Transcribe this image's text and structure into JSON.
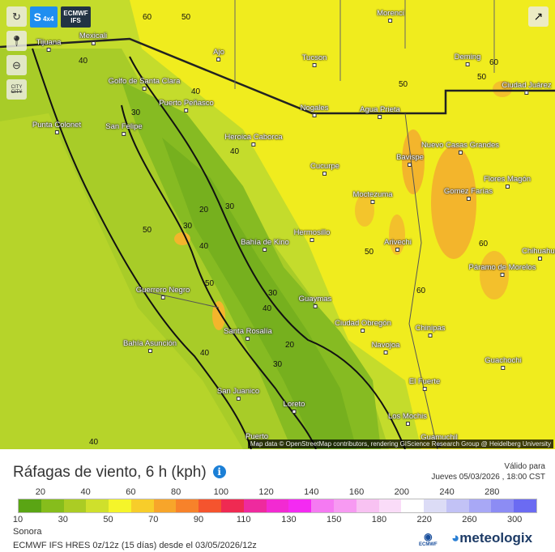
{
  "controls": {
    "refresh_icon": "refresh-icon",
    "model_s": "S",
    "model_s_sub": "4x4",
    "model_name_1": "ECMWF",
    "model_name_2": "IFS",
    "location_icon": "map-pin-icon",
    "zoom_out_icon": "zoom-out-icon",
    "city_toggle": "CITY",
    "share_icon": "share-icon"
  },
  "map": {
    "cities": [
      {
        "name": "Tijuana"
      },
      {
        "name": "Mexicali"
      },
      {
        "name": "Morenci"
      },
      {
        "name": "Ajo"
      },
      {
        "name": "Tucson"
      },
      {
        "name": "Deming"
      },
      {
        "name": "Ciudad Juárez"
      },
      {
        "name": "Golfo de Santa Clara"
      },
      {
        "name": "Puerto Peñasco"
      },
      {
        "name": "Nogales"
      },
      {
        "name": "Agua Prieta"
      },
      {
        "name": "Punta Colonet"
      },
      {
        "name": "San Felipe"
      },
      {
        "name": "Heroica Caborca"
      },
      {
        "name": "Bavispe"
      },
      {
        "name": "Nuevo Casas Grandes"
      },
      {
        "name": "Cucurpe"
      },
      {
        "name": "Flores Magón"
      },
      {
        "name": "Moctezuma"
      },
      {
        "name": "Gomez Farías"
      },
      {
        "name": "Hermosillo"
      },
      {
        "name": "Bahía de Kino"
      },
      {
        "name": "Arivechi"
      },
      {
        "name": "Chihuahua"
      },
      {
        "name": "Páramo de Morelos"
      },
      {
        "name": "Guerrero Negro"
      },
      {
        "name": "Guaymas"
      },
      {
        "name": "Santa Rosalía"
      },
      {
        "name": "Ciudad Obregón"
      },
      {
        "name": "Chinipas"
      },
      {
        "name": "Bahía Asunción"
      },
      {
        "name": "Navojoa"
      },
      {
        "name": "Guachochi"
      },
      {
        "name": "El Fuerte"
      },
      {
        "name": "San Juanico"
      },
      {
        "name": "Loreto"
      },
      {
        "name": "Los Mochis"
      },
      {
        "name": "Puerto"
      },
      {
        "name": "Guamuchil"
      }
    ],
    "contour_labels": [
      "60",
      "50",
      "40",
      "40",
      "30",
      "40",
      "20",
      "30",
      "30",
      "50",
      "40",
      "50",
      "30",
      "40",
      "20",
      "40",
      "30",
      "40",
      "50",
      "50",
      "60",
      "50",
      "60",
      "60"
    ],
    "attribution": "Map data © OpenStreetMap contributors, rendering GIScience Research Group @ Heidelberg University"
  },
  "legend": {
    "title": "Ráfagas de viento, 6 h (kph)",
    "info_icon": "i",
    "valid_label": "Válido para",
    "valid_time": "Jueves 05/03/2026 , 18:00 CST",
    "top_ticks": [
      "20",
      "40",
      "60",
      "80",
      "100",
      "120",
      "140",
      "160",
      "200",
      "240",
      "280"
    ],
    "bottom_ticks": [
      "10",
      "30",
      "50",
      "70",
      "90",
      "110",
      "130",
      "150",
      "180",
      "220",
      "260",
      "300"
    ],
    "colors": [
      "#5aa514",
      "#86bd1c",
      "#abcc24",
      "#cfe02c",
      "#f5f52a",
      "#f7cd2a",
      "#f7a52a",
      "#f7822a",
      "#f5542e",
      "#ef2a52",
      "#ee2a9e",
      "#f22ad2",
      "#f42af2",
      "#f57af2",
      "#f79af2",
      "#f8c2f2",
      "#fadcf8",
      "#ffffff",
      "#dcdcf6",
      "#c2c2f6",
      "#a8a8f6",
      "#8c8cf4",
      "#6b6bf2"
    ],
    "region": "Sonora",
    "source": "ECMWF IFS HRES 0z/12z (15 días) desde el 03/05/2026/12z",
    "ecmwf_logo": "ECMWF",
    "brand": "meteologix"
  }
}
